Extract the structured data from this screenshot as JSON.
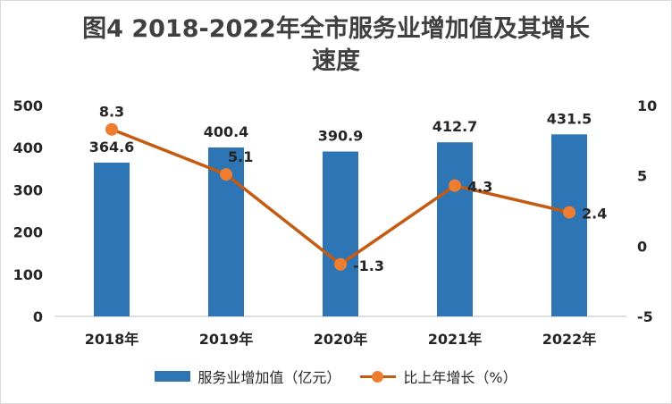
{
  "chart_data": {
    "type": "bar+line",
    "title_lines": [
      "图4 2018-2022年全市服务业增加值及其增长",
      "速度"
    ],
    "categories": [
      "2018年",
      "2019年",
      "2020年",
      "2021年",
      "2022年"
    ],
    "series": [
      {
        "name": "服务业增加值（亿元）",
        "type": "bar",
        "axis": "left",
        "values": [
          364.6,
          400.4,
          390.9,
          412.7,
          431.5
        ],
        "labels": [
          "364.6",
          "400.4",
          "390.9",
          "412.7",
          "431.5"
        ],
        "color": "#2e75b6"
      },
      {
        "name": "比上年增长（%）",
        "type": "line",
        "axis": "right",
        "values": [
          8.3,
          5.1,
          -1.3,
          4.3,
          2.4
        ],
        "labels": [
          "8.3",
          "5.1",
          "-1.3",
          "4.3",
          "2.4"
        ],
        "line_color": "#c55a11",
        "marker_color": "#ed7d31"
      }
    ],
    "y_left": {
      "ylim": [
        0,
        500
      ],
      "ticks": [
        "0",
        "100",
        "200",
        "300",
        "400",
        "500"
      ]
    },
    "y_right": {
      "ylim": [
        -5,
        10
      ],
      "ticks": [
        "-5",
        "0",
        "5",
        "10"
      ]
    },
    "grid": false,
    "legend": "bottom"
  }
}
